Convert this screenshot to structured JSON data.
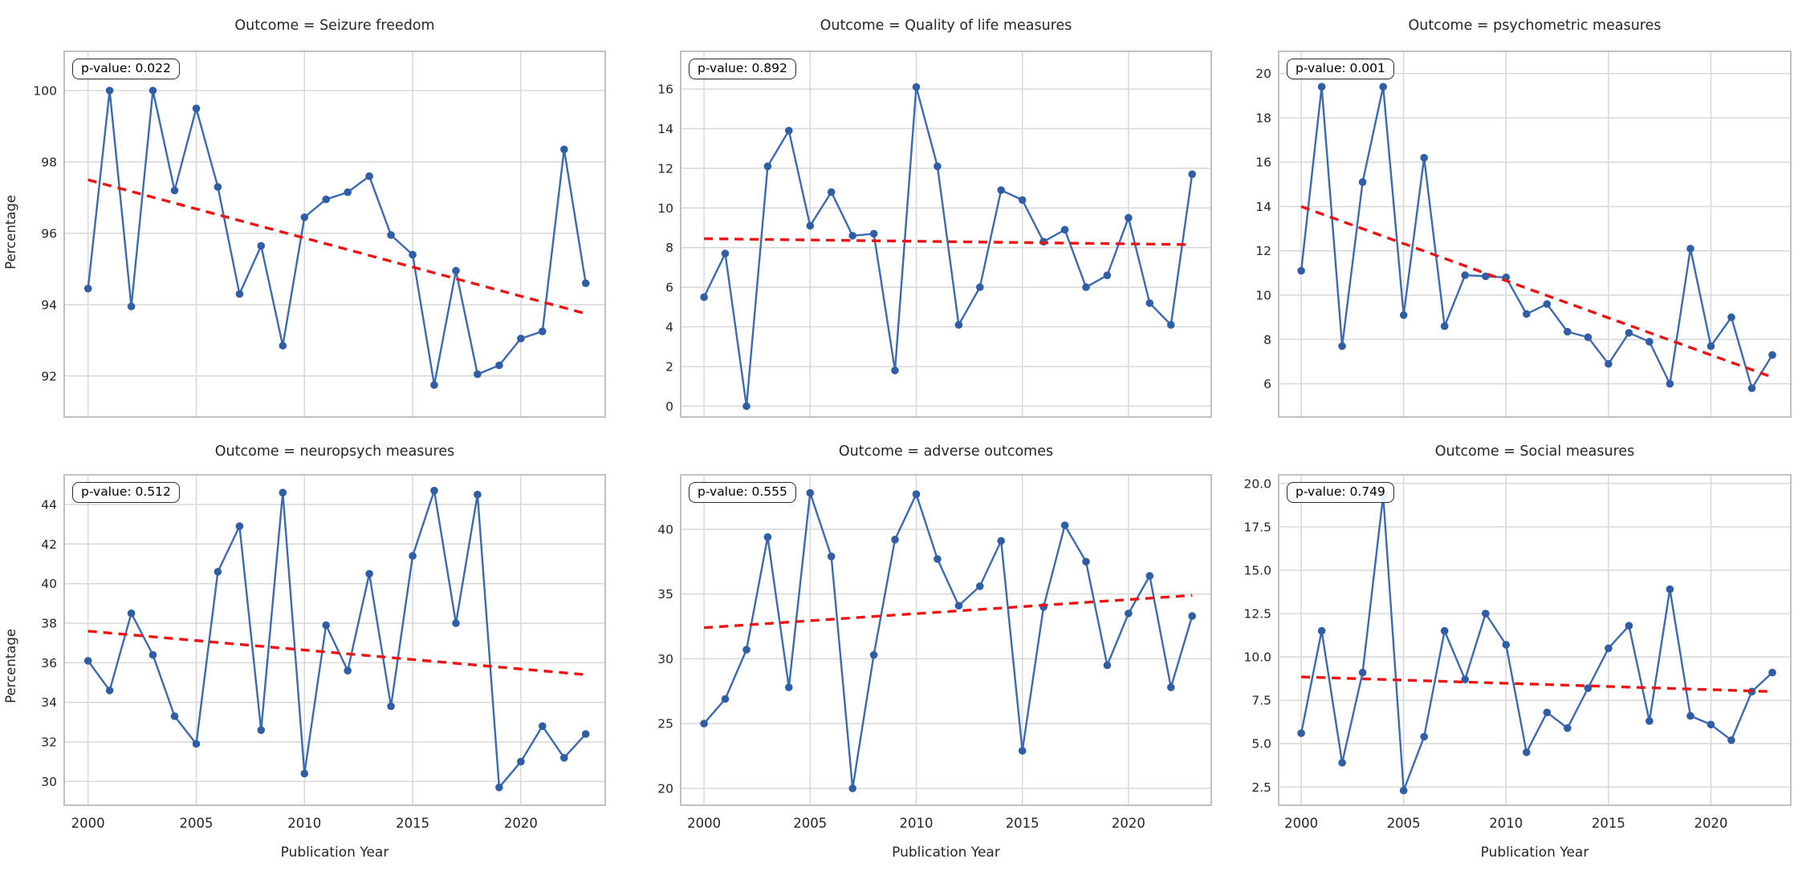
{
  "figure": {
    "xlabel": "Publication Year",
    "ylabel": "Percentage",
    "xlim": [
      1998.9,
      2023.9
    ],
    "xtick_values": [
      2000,
      2005,
      2010,
      2015,
      2020
    ],
    "xtick_labels": [
      "2000",
      "2005",
      "2010",
      "2015",
      "2020"
    ],
    "grid": true,
    "colors": {
      "line": "#3b6ab4",
      "marker": "#2f5da6",
      "trend": "#ee1312",
      "grid": "#d8d8d8",
      "spine": "#c0c0c0",
      "text": "#262626",
      "annotation_border": "#2b2b2b",
      "background": "#ffffff"
    }
  },
  "chart_data": [
    {
      "type": "line",
      "title": "Outcome = Seizure freedom",
      "pvalue_label": "p-value: 0.022",
      "p_value": 0.022,
      "ylabel": "Percentage",
      "xlabel": "Publication Year",
      "ytick_values": [
        92,
        94,
        96,
        98,
        100
      ],
      "ytick_labels": [
        "92",
        "94",
        "96",
        "98",
        "100"
      ],
      "ylim": [
        90.85,
        101.1
      ],
      "x": [
        2000,
        2001,
        2002,
        2003,
        2004,
        2005,
        2006,
        2007,
        2008,
        2009,
        2010,
        2011,
        2012,
        2013,
        2014,
        2015,
        2016,
        2017,
        2018,
        2019,
        2020,
        2021,
        2022,
        2023
      ],
      "values": [
        94.45,
        100.0,
        93.95,
        100.0,
        97.2,
        99.5,
        97.3,
        94.3,
        95.65,
        92.85,
        96.45,
        96.95,
        97.15,
        97.6,
        95.95,
        95.4,
        91.75,
        94.95,
        92.05,
        92.3,
        93.05,
        93.25,
        98.35,
        94.6
      ],
      "trend": {
        "start": 97.5,
        "end": 93.75
      }
    },
    {
      "type": "line",
      "title": "Outcome = Quality of life measures",
      "pvalue_label": "p-value: 0.892",
      "p_value": 0.892,
      "ylabel": "Percentage",
      "xlabel": "Publication Year",
      "ytick_values": [
        0,
        2,
        4,
        6,
        8,
        10,
        12,
        14,
        16
      ],
      "ytick_labels": [
        "0",
        "2",
        "4",
        "6",
        "8",
        "10",
        "12",
        "14",
        "16"
      ],
      "ylim": [
        -0.55,
        17.9
      ],
      "x": [
        2000,
        2001,
        2002,
        2003,
        2004,
        2005,
        2006,
        2007,
        2008,
        2009,
        2010,
        2011,
        2012,
        2013,
        2014,
        2015,
        2016,
        2017,
        2018,
        2019,
        2020,
        2021,
        2022,
        2023
      ],
      "values": [
        5.5,
        7.7,
        0.0,
        12.1,
        13.9,
        9.1,
        10.8,
        8.6,
        8.7,
        1.8,
        16.1,
        12.1,
        4.1,
        6.0,
        10.9,
        10.4,
        8.3,
        8.9,
        6.0,
        6.6,
        9.5,
        5.2,
        4.1,
        11.7
      ],
      "trend": {
        "start": 8.45,
        "end": 8.15
      }
    },
    {
      "type": "line",
      "title": "Outcome = psychometric measures",
      "pvalue_label": "p-value: 0.001",
      "p_value": 0.001,
      "ylabel": "Percentage",
      "xlabel": "Publication Year",
      "ytick_values": [
        6,
        8,
        10,
        12,
        14,
        16,
        18,
        20
      ],
      "ytick_labels": [
        "6",
        "8",
        "10",
        "12",
        "14",
        "16",
        "18",
        "20"
      ],
      "ylim": [
        4.5,
        21.0
      ],
      "x": [
        2000,
        2001,
        2002,
        2003,
        2004,
        2005,
        2006,
        2007,
        2008,
        2009,
        2010,
        2011,
        2012,
        2013,
        2014,
        2015,
        2016,
        2017,
        2018,
        2019,
        2020,
        2021,
        2022,
        2023
      ],
      "values": [
        11.1,
        19.4,
        7.7,
        15.1,
        19.4,
        9.1,
        16.2,
        8.6,
        10.9,
        10.85,
        10.8,
        9.15,
        9.6,
        8.35,
        8.1,
        6.9,
        8.3,
        7.9,
        6.0,
        12.1,
        7.7,
        9.0,
        5.8,
        7.3
      ],
      "trend": {
        "start": 14.0,
        "end": 6.3
      }
    },
    {
      "type": "line",
      "title": "Outcome = neuropsych measures",
      "pvalue_label": "p-value: 0.512",
      "p_value": 0.512,
      "ylabel": "Percentage",
      "xlabel": "Publication Year",
      "ytick_values": [
        30,
        32,
        34,
        36,
        38,
        40,
        42,
        44
      ],
      "ytick_labels": [
        "30",
        "32",
        "34",
        "36",
        "38",
        "40",
        "42",
        "44"
      ],
      "ylim": [
        28.8,
        45.5
      ],
      "x": [
        2000,
        2001,
        2002,
        2003,
        2004,
        2005,
        2006,
        2007,
        2008,
        2009,
        2010,
        2011,
        2012,
        2013,
        2014,
        2015,
        2016,
        2017,
        2018,
        2019,
        2020,
        2021,
        2022,
        2023
      ],
      "values": [
        36.1,
        34.6,
        38.5,
        36.4,
        33.3,
        31.9,
        40.6,
        42.9,
        32.6,
        44.6,
        30.4,
        37.9,
        35.6,
        40.5,
        33.8,
        41.4,
        44.7,
        38.0,
        44.5,
        29.7,
        31.0,
        32.8,
        31.2,
        32.4
      ],
      "trend": {
        "start": 37.6,
        "end": 35.4
      }
    },
    {
      "type": "line",
      "title": "Outcome = adverse outcomes",
      "pvalue_label": "p-value: 0.555",
      "p_value": 0.555,
      "ylabel": "Percentage",
      "xlabel": "Publication Year",
      "ytick_values": [
        20,
        25,
        30,
        35,
        40
      ],
      "ytick_labels": [
        "20",
        "25",
        "30",
        "35",
        "40"
      ],
      "ylim": [
        18.7,
        44.2
      ],
      "x": [
        2000,
        2001,
        2002,
        2003,
        2004,
        2005,
        2006,
        2007,
        2008,
        2009,
        2010,
        2011,
        2012,
        2013,
        2014,
        2015,
        2016,
        2017,
        2018,
        2019,
        2020,
        2021,
        2022,
        2023
      ],
      "values": [
        25.0,
        26.9,
        30.7,
        39.4,
        27.8,
        42.8,
        37.9,
        20.0,
        30.3,
        39.2,
        42.7,
        37.7,
        34.1,
        35.6,
        39.1,
        22.9,
        34.0,
        40.3,
        37.5,
        29.5,
        33.5,
        36.4,
        27.8,
        33.3
      ],
      "trend": {
        "start": 32.4,
        "end": 34.9
      }
    },
    {
      "type": "line",
      "title": "Outcome = Social measures",
      "pvalue_label": "p-value: 0.749",
      "p_value": 0.749,
      "ylabel": "Percentage",
      "xlabel": "Publication Year",
      "ytick_values": [
        2.5,
        5.0,
        7.5,
        10.0,
        12.5,
        15.0,
        17.5,
        20.0
      ],
      "ytick_labels": [
        "2.5",
        "5.0",
        "7.5",
        "10.0",
        "12.5",
        "15.0",
        "17.5",
        "20.0"
      ],
      "ylim": [
        1.45,
        20.5
      ],
      "x": [
        2000,
        2001,
        2002,
        2003,
        2004,
        2005,
        2006,
        2007,
        2008,
        2009,
        2010,
        2011,
        2012,
        2013,
        2014,
        2015,
        2016,
        2017,
        2018,
        2019,
        2020,
        2021,
        2022,
        2023
      ],
      "values": [
        5.6,
        11.5,
        3.9,
        9.1,
        19.3,
        2.3,
        5.4,
        11.5,
        8.7,
        12.5,
        10.7,
        4.5,
        6.8,
        5.9,
        8.2,
        10.5,
        11.8,
        6.3,
        13.9,
        6.6,
        6.1,
        5.2,
        8.0,
        9.1
      ],
      "trend": {
        "start": 8.85,
        "end": 8.0
      }
    }
  ]
}
